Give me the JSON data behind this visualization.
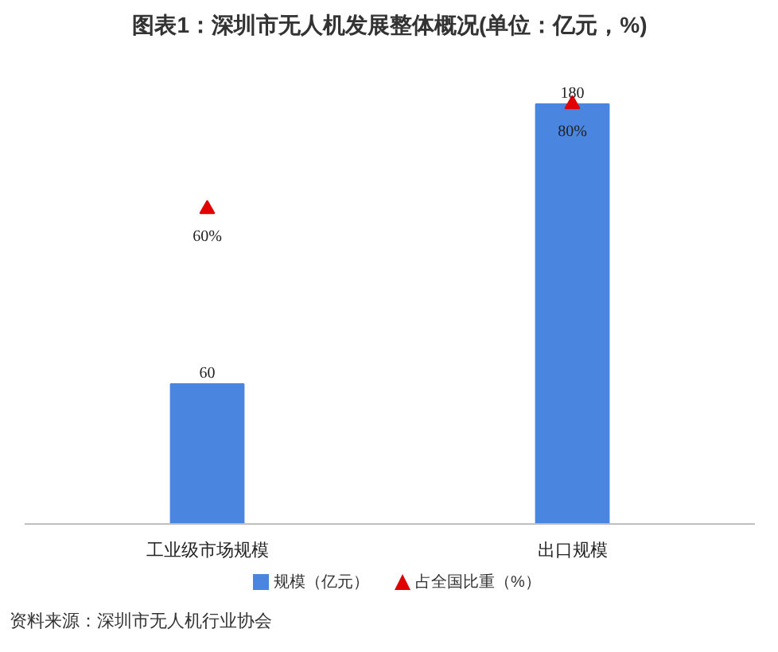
{
  "chart_data": {
    "type": "bar",
    "title": "图表1：深圳市无人机发展整体概况(单位：亿元，%)",
    "categories": [
      "工业级市场规模",
      "出口规模"
    ],
    "series": [
      {
        "name": "规模（亿元）",
        "color": "#4a86e0",
        "values": [
          60,
          180
        ],
        "value_labels": [
          "60",
          "180"
        ]
      },
      {
        "name": "占全国比重（%）",
        "type": "scatter",
        "axis": "y2",
        "marker": "triangle",
        "color": "#e00000",
        "values": [
          60,
          80
        ],
        "value_labels": [
          "60%",
          "80%"
        ]
      }
    ],
    "legend": "bottom",
    "annotations": [
      "资料来源：深圳市无人机行业协会"
    ]
  }
}
